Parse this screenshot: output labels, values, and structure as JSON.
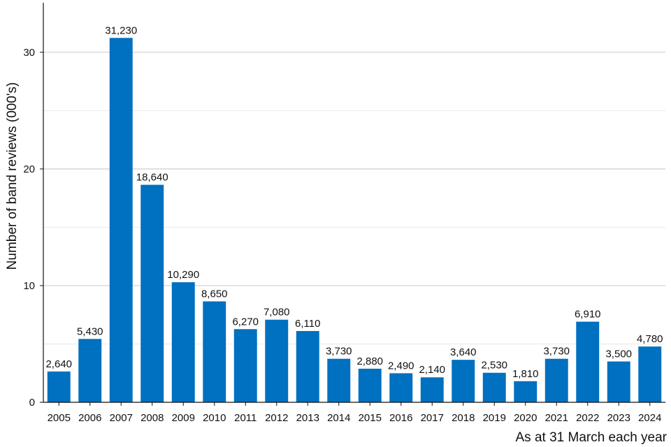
{
  "chart_data": {
    "type": "bar",
    "title": "",
    "xlabel": "As at 31 March each year",
    "ylabel": "Number of band reviews (000's)",
    "ylim": [
      0,
      34
    ],
    "yticks": [
      0,
      10,
      20,
      30
    ],
    "grid": true,
    "bar_color": "#0070c0",
    "categories": [
      "2005",
      "2006",
      "2007",
      "2008",
      "2009",
      "2010",
      "2011",
      "2012",
      "2013",
      "2014",
      "2015",
      "2016",
      "2017",
      "2018",
      "2019",
      "2020",
      "2021",
      "2022",
      "2023",
      "2024"
    ],
    "values": [
      2.64,
      5.43,
      31.23,
      18.64,
      10.29,
      8.65,
      6.27,
      7.08,
      6.11,
      3.73,
      2.88,
      2.49,
      2.14,
      3.64,
      2.53,
      1.81,
      3.73,
      6.91,
      3.5,
      4.78
    ],
    "data_labels": [
      "2,640",
      "5,430",
      "31,230",
      "18,640",
      "10,290",
      "8,650",
      "6,270",
      "7,080",
      "6,110",
      "3,730",
      "2,880",
      "2,490",
      "2,140",
      "3,640",
      "2,530",
      "1,810",
      "3,730",
      "6,910",
      "3,500",
      "4,780"
    ]
  }
}
